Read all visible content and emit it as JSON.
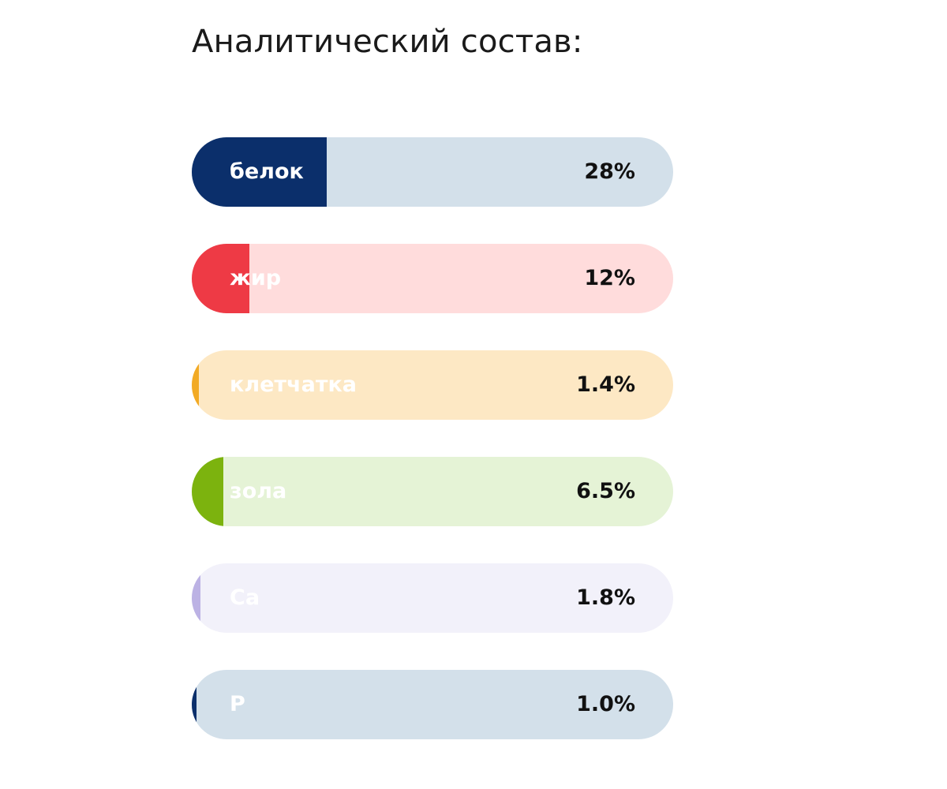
{
  "chart_data": {
    "type": "bar",
    "orientation": "horizontal",
    "title": "Аналитический состав:",
    "categories": [
      "белок",
      "жир",
      "клетчатка",
      "зола",
      "Ca",
      "P"
    ],
    "values": [
      28,
      12,
      1.4,
      6.5,
      1.8,
      1.0
    ],
    "value_labels": [
      "28%",
      "12%",
      "1.4%",
      "6.5%",
      "1.8%",
      "1.0%"
    ],
    "unit": "%",
    "xlim": [
      0,
      100
    ],
    "grid": false,
    "legend": "none",
    "colors": [
      {
        "fill": "#0b2f6b",
        "track": "#d3e0ea"
      },
      {
        "fill": "#ee3a45",
        "track": "#ffdcdc"
      },
      {
        "fill": "#f2aa24",
        "track": "#fde8c4"
      },
      {
        "fill": "#7cb30e",
        "track": "#e5f3d6"
      },
      {
        "fill": "#bcb2e4",
        "track": "#f2f1fa"
      },
      {
        "fill": "#0b2f6b",
        "track": "#d3e0ea"
      }
    ]
  }
}
